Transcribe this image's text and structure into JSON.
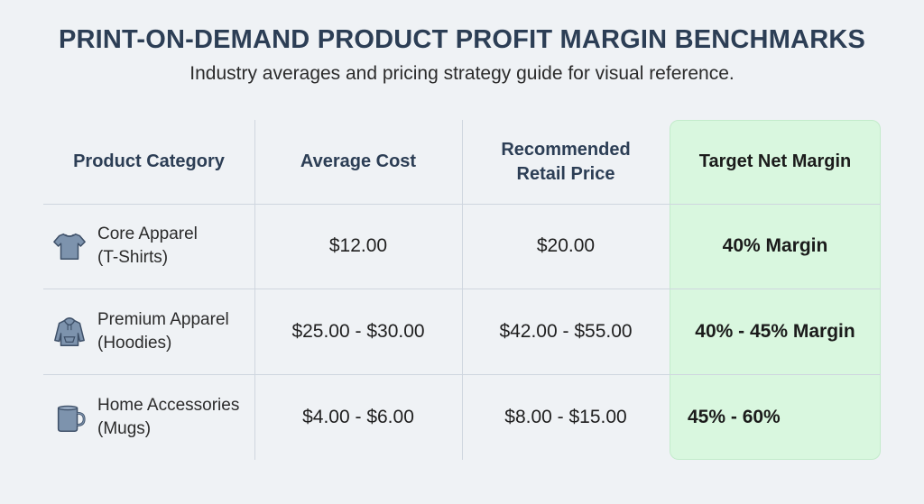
{
  "title": "PRINT-ON-DEMAND PRODUCT PROFIT MARGIN BENCHMARKS",
  "subtitle": "Industry averages and pricing strategy guide for visual reference.",
  "colors": {
    "highlight_bg": "#d9f7df",
    "title": "#2c3e55",
    "icon_fill": "#7d93ad",
    "icon_stroke": "#3e5068"
  },
  "table": {
    "headers": {
      "category": "Product Category",
      "cost": "Average Cost",
      "retail_line1": "Recommended",
      "retail_line2": "Retail Price",
      "margin": "Target Net Margin"
    },
    "rows": [
      {
        "icon": "t-shirt-icon",
        "category_line1": "Core Apparel",
        "category_line2": "(T-Shirts)",
        "cost": "$12.00",
        "retail": "$20.00",
        "margin": "40% Margin"
      },
      {
        "icon": "hoodie-icon",
        "category_line1": "Premium Apparel",
        "category_line2": "(Hoodies)",
        "cost": "$25.00 - $30.00",
        "retail": "$42.00 - $55.00",
        "margin": "40% - 45% Margin"
      },
      {
        "icon": "mug-icon",
        "category_line1": "Home Accessories",
        "category_line2": "(Mugs)",
        "cost": "$4.00 - $6.00",
        "retail": "$8.00 - $15.00",
        "margin": "45% - 60%"
      }
    ]
  }
}
